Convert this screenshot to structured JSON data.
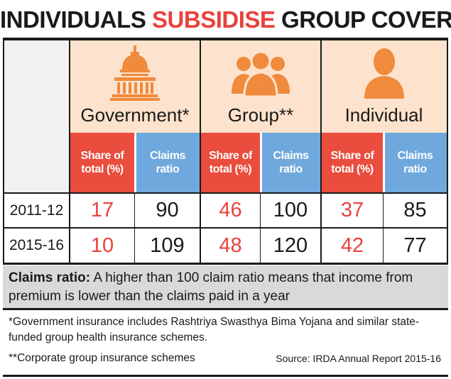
{
  "title": {
    "part1": "INDIVIDUALS ",
    "part2": "SUBSIDISE",
    "part3": " GROUP COVER?"
  },
  "colors": {
    "share": "#ea4d3d",
    "ratio": "#6fa8dc",
    "header_bg": "#fde3cd",
    "note_bg": "#d9d9d9"
  },
  "chart_data": {
    "type": "table",
    "groups": [
      {
        "name": "Government*",
        "icon": "capitol-building-icon"
      },
      {
        "name": "Group**",
        "icon": "people-group-icon"
      },
      {
        "name": "Individual",
        "icon": "person-icon"
      }
    ],
    "subheaders": {
      "share": "Share of total (%)",
      "ratio": "Claims ratio"
    },
    "rows": [
      {
        "year": "2011-12",
        "values": [
          17,
          90,
          46,
          100,
          37,
          85
        ]
      },
      {
        "year": "2015-16",
        "values": [
          10,
          109,
          48,
          120,
          42,
          77
        ]
      }
    ]
  },
  "note": {
    "label": "Claims ratio:",
    "text": " A higher than 100 claim ratio means that income from premium is lower than the claims paid in a year"
  },
  "footnotes": {
    "gov": "*Government insurance includes Rashtriya Swasthya Bima Yojana and similar state-funded group health insurance schemes.",
    "corp": "**Corporate group insurance schemes",
    "source": "Source: IRDA Annual Report 2015-16"
  }
}
